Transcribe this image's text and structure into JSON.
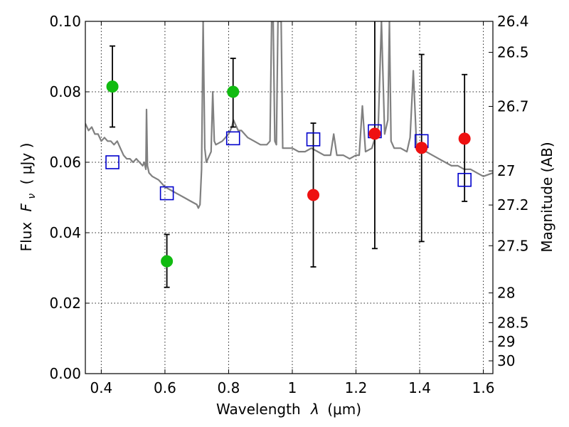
{
  "chart_data": {
    "type": "scatter",
    "xlabel_main": "Wavelength",
    "xlabel_symbol": "λ",
    "xlabel_unit": "(μm)",
    "ylabel_main": "Flux",
    "ylabel_symbol": "F",
    "ylabel_subscript": "ν",
    "ylabel_unit": "( μJy )",
    "y2label": "Magnitude (AB)",
    "xlim": [
      0.35,
      1.63
    ],
    "ylim": [
      0.0,
      0.1
    ],
    "grid": true,
    "x_ticks": [
      {
        "value": 0.4,
        "label": "0.4"
      },
      {
        "value": 0.6,
        "label": "0.6"
      },
      {
        "value": 0.8,
        "label": "0.8"
      },
      {
        "value": 1.0,
        "label": "1"
      },
      {
        "value": 1.2,
        "label": "1.2"
      },
      {
        "value": 1.4,
        "label": "1.4"
      },
      {
        "value": 1.6,
        "label": "1.6"
      }
    ],
    "y_ticks": [
      {
        "value": 0.0,
        "label": "0.00"
      },
      {
        "value": 0.02,
        "label": "0.02"
      },
      {
        "value": 0.04,
        "label": "0.04"
      },
      {
        "value": 0.06,
        "label": "0.06"
      },
      {
        "value": 0.08,
        "label": "0.08"
      },
      {
        "value": 0.1,
        "label": "0.10"
      }
    ],
    "y2_ticks": [
      {
        "label": "26.4",
        "mag": 26.4
      },
      {
        "label": "26.5",
        "mag": 26.5
      },
      {
        "label": "26.7",
        "mag": 26.7
      },
      {
        "label": "27",
        "mag": 27.0
      },
      {
        "label": "27.2",
        "mag": 27.2
      },
      {
        "label": "27.5",
        "mag": 27.5
      },
      {
        "label": "28",
        "mag": 28.0
      },
      {
        "label": "28.5",
        "mag": 28.5
      },
      {
        "label": "29",
        "mag": 29.0
      },
      {
        "label": "30",
        "mag": 30.0
      }
    ],
    "series": [
      {
        "role": "model-spectrum",
        "style": "line",
        "color": "#808080",
        "points": [
          [
            0.35,
            0.071
          ],
          [
            0.36,
            0.069
          ],
          [
            0.37,
            0.07
          ],
          [
            0.38,
            0.068
          ],
          [
            0.39,
            0.068
          ],
          [
            0.4,
            0.066
          ],
          [
            0.41,
            0.067
          ],
          [
            0.42,
            0.066
          ],
          [
            0.43,
            0.066
          ],
          [
            0.44,
            0.065
          ],
          [
            0.45,
            0.066
          ],
          [
            0.46,
            0.064
          ],
          [
            0.47,
            0.062
          ],
          [
            0.48,
            0.061
          ],
          [
            0.49,
            0.061
          ],
          [
            0.5,
            0.06
          ],
          [
            0.51,
            0.061
          ],
          [
            0.52,
            0.06
          ],
          [
            0.53,
            0.059
          ],
          [
            0.535,
            0.06
          ],
          [
            0.54,
            0.058
          ],
          [
            0.542,
            0.075
          ],
          [
            0.545,
            0.059
          ],
          [
            0.55,
            0.057
          ],
          [
            0.56,
            0.056
          ],
          [
            0.58,
            0.055
          ],
          [
            0.6,
            0.053
          ],
          [
            0.62,
            0.052
          ],
          [
            0.64,
            0.051
          ],
          [
            0.66,
            0.05
          ],
          [
            0.68,
            0.049
          ],
          [
            0.7,
            0.048
          ],
          [
            0.705,
            0.047
          ],
          [
            0.71,
            0.048
          ],
          [
            0.715,
            0.058
          ],
          [
            0.72,
            0.1
          ],
          [
            0.725,
            0.064
          ],
          [
            0.73,
            0.06
          ],
          [
            0.74,
            0.062
          ],
          [
            0.745,
            0.063
          ],
          [
            0.75,
            0.08
          ],
          [
            0.755,
            0.066
          ],
          [
            0.76,
            0.065
          ],
          [
            0.78,
            0.066
          ],
          [
            0.8,
            0.068
          ],
          [
            0.81,
            0.07
          ],
          [
            0.815,
            0.072
          ],
          [
            0.82,
            0.071
          ],
          [
            0.83,
            0.069
          ],
          [
            0.84,
            0.069
          ],
          [
            0.86,
            0.067
          ],
          [
            0.88,
            0.066
          ],
          [
            0.9,
            0.065
          ],
          [
            0.92,
            0.065
          ],
          [
            0.93,
            0.066
          ],
          [
            0.935,
            0.1
          ],
          [
            0.94,
            0.1
          ],
          [
            0.945,
            0.066
          ],
          [
            0.95,
            0.065
          ],
          [
            0.955,
            0.1
          ],
          [
            0.96,
            0.1
          ],
          [
            0.965,
            0.1
          ],
          [
            0.97,
            0.064
          ],
          [
            0.98,
            0.064
          ],
          [
            1.0,
            0.064
          ],
          [
            1.02,
            0.063
          ],
          [
            1.04,
            0.063
          ],
          [
            1.06,
            0.064
          ],
          [
            1.08,
            0.063
          ],
          [
            1.1,
            0.062
          ],
          [
            1.12,
            0.062
          ],
          [
            1.13,
            0.068
          ],
          [
            1.14,
            0.062
          ],
          [
            1.16,
            0.062
          ],
          [
            1.18,
            0.061
          ],
          [
            1.2,
            0.062
          ],
          [
            1.21,
            0.062
          ],
          [
            1.22,
            0.076
          ],
          [
            1.23,
            0.063
          ],
          [
            1.25,
            0.064
          ],
          [
            1.26,
            0.067
          ],
          [
            1.27,
            0.07
          ],
          [
            1.28,
            0.1
          ],
          [
            1.29,
            0.068
          ],
          [
            1.3,
            0.072
          ],
          [
            1.305,
            0.1
          ],
          [
            1.31,
            0.066
          ],
          [
            1.32,
            0.064
          ],
          [
            1.34,
            0.064
          ],
          [
            1.36,
            0.063
          ],
          [
            1.37,
            0.067
          ],
          [
            1.38,
            0.086
          ],
          [
            1.39,
            0.065
          ],
          [
            1.4,
            0.063
          ],
          [
            1.42,
            0.063
          ],
          [
            1.44,
            0.062
          ],
          [
            1.46,
            0.061
          ],
          [
            1.48,
            0.06
          ],
          [
            1.5,
            0.059
          ],
          [
            1.52,
            0.059
          ],
          [
            1.54,
            0.058
          ],
          [
            1.56,
            0.058
          ],
          [
            1.58,
            0.057
          ],
          [
            1.6,
            0.056
          ],
          [
            1.63,
            0.057
          ]
        ]
      },
      {
        "role": "model-photometry",
        "style": "open-square",
        "color": "#0000cc",
        "points": [
          {
            "x": 0.435,
            "y": 0.06
          },
          {
            "x": 0.606,
            "y": 0.0512
          },
          {
            "x": 0.814,
            "y": 0.0668
          },
          {
            "x": 1.066,
            "y": 0.0665
          },
          {
            "x": 1.259,
            "y": 0.0688
          },
          {
            "x": 1.406,
            "y": 0.066
          },
          {
            "x": 1.541,
            "y": 0.055
          }
        ]
      },
      {
        "role": "observed-optical",
        "style": "filled-circle",
        "color": "#11bb11",
        "points": [
          {
            "x": 0.435,
            "y": 0.0815,
            "ylo": 0.07,
            "yhi": 0.093
          },
          {
            "x": 0.606,
            "y": 0.0319,
            "ylo": 0.0245,
            "yhi": 0.0395
          },
          {
            "x": 0.814,
            "y": 0.08,
            "ylo": 0.07,
            "yhi": 0.0895
          }
        ]
      },
      {
        "role": "observed-nir",
        "style": "filled-circle",
        "color": "#ee1111",
        "points": [
          {
            "x": 1.066,
            "y": 0.0507,
            "ylo": 0.0303,
            "yhi": 0.0711
          },
          {
            "x": 1.259,
            "y": 0.0681,
            "ylo": 0.0355,
            "yhi": 0.1007
          },
          {
            "x": 1.406,
            "y": 0.0641,
            "ylo": 0.0375,
            "yhi": 0.0906
          },
          {
            "x": 1.541,
            "y": 0.0667,
            "ylo": 0.0489,
            "yhi": 0.0849
          }
        ]
      }
    ]
  }
}
